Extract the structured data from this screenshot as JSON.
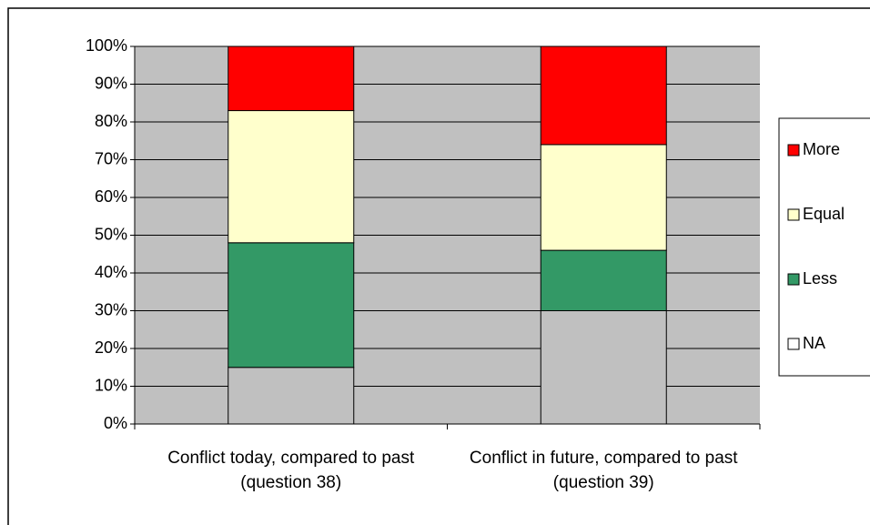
{
  "chart_data": {
    "type": "stacked_bar",
    "categories": [
      "Conflict today, compared to past (question 38)",
      "Conflict in future, compared to past (question 39)"
    ],
    "series": [
      {
        "name": "NA",
        "color": "#c0c0c0",
        "values": [
          15,
          30
        ]
      },
      {
        "name": "Less",
        "color": "#339966",
        "values": [
          33,
          16
        ]
      },
      {
        "name": "Equal",
        "color": "#ffffcc",
        "values": [
          35,
          28
        ]
      },
      {
        "name": "More",
        "color": "#ff0000",
        "values": [
          17,
          26
        ]
      }
    ],
    "ylim": [
      0,
      100
    ],
    "yticks": [
      {
        "value": 0,
        "label": "0%"
      },
      {
        "value": 10,
        "label": "10%"
      },
      {
        "value": 20,
        "label": "20%"
      },
      {
        "value": 30,
        "label": "30%"
      },
      {
        "value": 40,
        "label": "40%"
      },
      {
        "value": 50,
        "label": "50%"
      },
      {
        "value": 60,
        "label": "60%"
      },
      {
        "value": 70,
        "label": "70%"
      },
      {
        "value": 80,
        "label": "80%"
      },
      {
        "value": 90,
        "label": "90%"
      },
      {
        "value": 100,
        "label": "100%"
      }
    ],
    "grid": true,
    "legend": "right",
    "plot_background": "#c0c0c0"
  }
}
